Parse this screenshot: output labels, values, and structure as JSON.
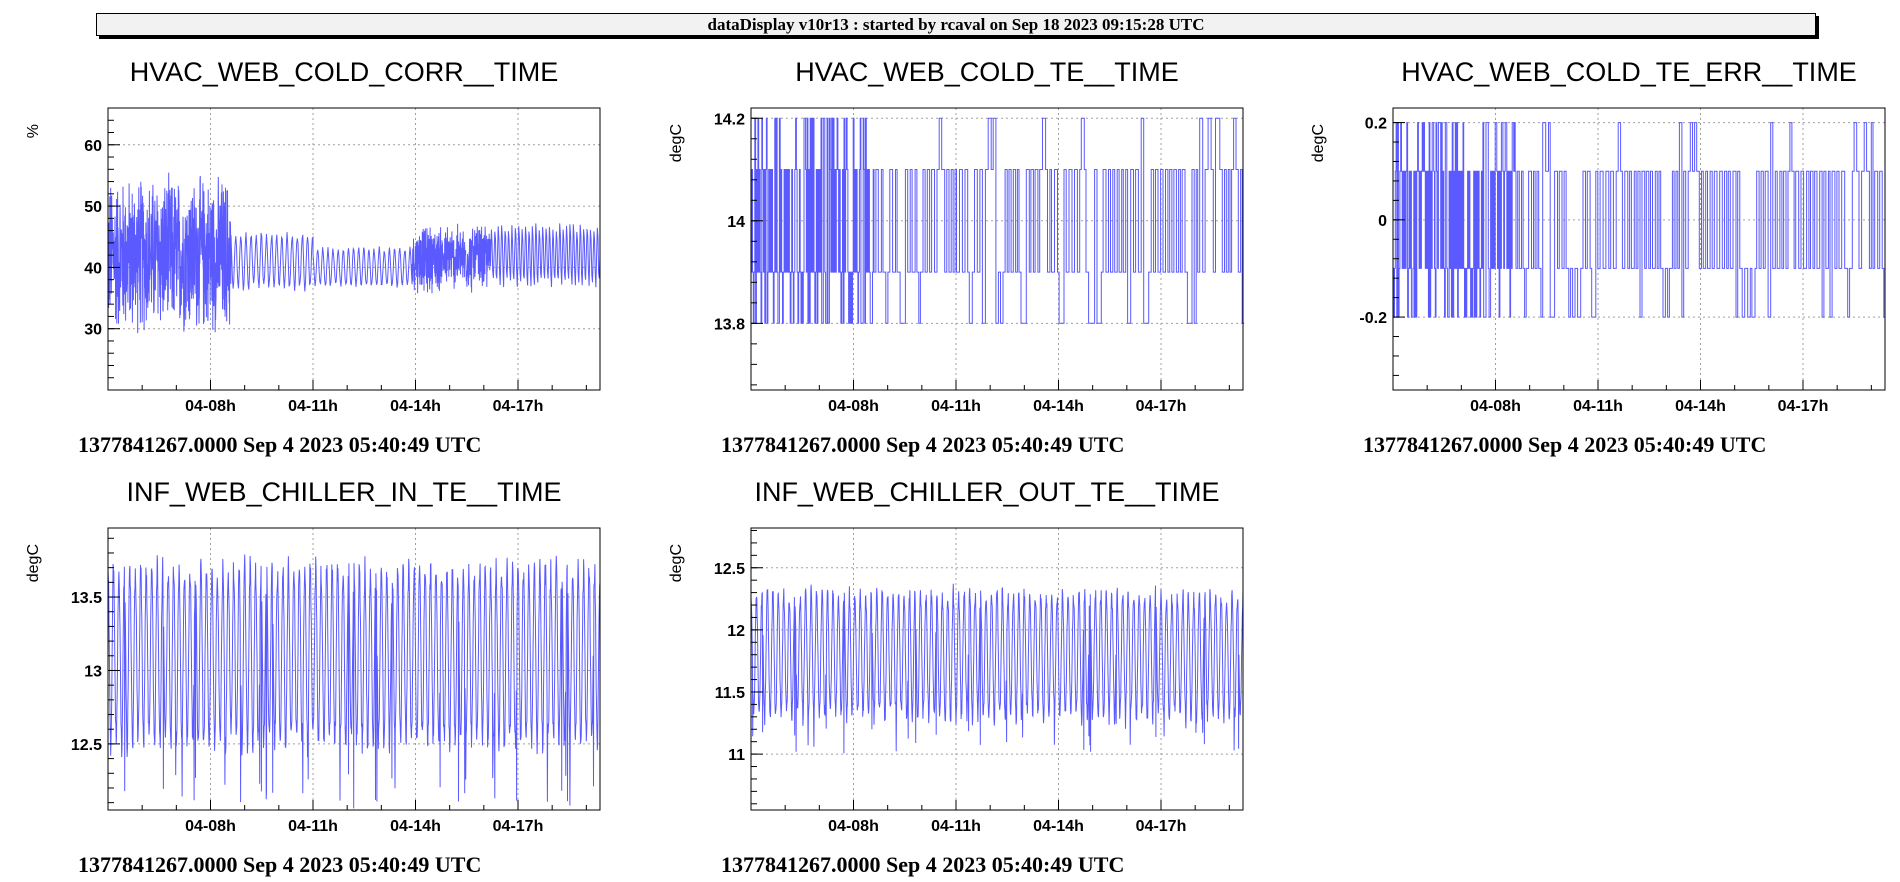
{
  "header": {
    "text": "dataDisplay v10r13 : started by rcaval on Sep 18 2023 09:15:28 UTC"
  },
  "colors": {
    "trace": "#5a5aff",
    "grid": "#a0a0a0",
    "frame": "#000000"
  },
  "chart_data": [
    {
      "type": "line",
      "title": "HVAC_WEB_COLD_CORR__TIME",
      "ylabel": "%",
      "footer": "1377841267.0000 Sep 4 2023 05:40:49 UTC",
      "x_range_h": [
        5.0,
        19.4
      ],
      "x_ticks": [
        {
          "h": 8,
          "label": "04-08h"
        },
        {
          "h": 11,
          "label": "04-11h"
        },
        {
          "h": 14,
          "label": "04-14h"
        },
        {
          "h": 17,
          "label": "04-17h"
        }
      ],
      "ylim": [
        20,
        66
      ],
      "y_ticks": [
        {
          "v": 30,
          "label": "30"
        },
        {
          "v": 40,
          "label": "40"
        },
        {
          "v": 50,
          "label": "50"
        },
        {
          "v": 60,
          "label": "60"
        }
      ],
      "grid": true,
      "series": [
        {
          "segments": [
            {
              "x0": 5.0,
              "x1": 8.6,
              "center": 42,
              "amp": 14,
              "period": 0.02,
              "mode": "noise"
            },
            {
              "x0": 8.6,
              "x1": 11.0,
              "center": 41,
              "amp": 5,
              "period": 0.15,
              "mode": "osc"
            },
            {
              "x0": 11.0,
              "x1": 13.9,
              "center": 40,
              "amp": 3.5,
              "period": 0.15,
              "mode": "osc"
            },
            {
              "x0": 13.9,
              "x1": 16.2,
              "center": 41.5,
              "amp": 6,
              "period": 0.04,
              "mode": "noise"
            },
            {
              "x0": 16.2,
              "x1": 19.4,
              "center": 42,
              "amp": 5.5,
              "period": 0.1,
              "mode": "osc"
            }
          ]
        }
      ]
    },
    {
      "type": "line",
      "title": "HVAC_WEB_COLD_TE__TIME",
      "ylabel": "degC",
      "footer": "1377841267.0000 Sep 4 2023 05:40:49 UTC",
      "x_range_h": [
        5.0,
        19.4
      ],
      "x_ticks": [
        {
          "h": 8,
          "label": "04-08h"
        },
        {
          "h": 11,
          "label": "04-11h"
        },
        {
          "h": 14,
          "label": "04-14h"
        },
        {
          "h": 17,
          "label": "04-17h"
        }
      ],
      "ylim": [
        13.67,
        14.22
      ],
      "y_ticks": [
        {
          "v": 13.8,
          "label": "13.8"
        },
        {
          "v": 14.0,
          "label": "14"
        },
        {
          "v": 14.2,
          "label": "14.2"
        }
      ],
      "grid": true,
      "series": [
        {
          "levels": [
            13.8,
            13.9,
            14.0,
            14.1,
            14.2
          ],
          "base_low": 13.9,
          "base_high": 14.1,
          "dense_until_h": 8.6,
          "period_h": 0.09
        }
      ]
    },
    {
      "type": "line",
      "title": "HVAC_WEB_COLD_TE_ERR__TIME",
      "ylabel": "degC",
      "footer": "1377841267.0000 Sep 4 2023 05:40:49 UTC",
      "x_range_h": [
        5.0,
        19.4
      ],
      "x_ticks": [
        {
          "h": 8,
          "label": "04-08h"
        },
        {
          "h": 11,
          "label": "04-11h"
        },
        {
          "h": 14,
          "label": "04-14h"
        },
        {
          "h": 17,
          "label": "04-17h"
        }
      ],
      "ylim": [
        -0.35,
        0.23
      ],
      "y_ticks": [
        {
          "v": -0.2,
          "label": "-0.2"
        },
        {
          "v": 0,
          "label": "0"
        },
        {
          "v": 0.2,
          "label": "0.2"
        }
      ],
      "grid": true,
      "series": [
        {
          "levels": [
            -0.2,
            -0.1,
            0.0,
            0.1,
            0.2
          ],
          "base_low": -0.1,
          "base_high": 0.1,
          "dense_until_h": 8.6,
          "period_h": 0.09
        }
      ]
    },
    {
      "type": "line",
      "title": "INF_WEB_CHILLER_IN_TE__TIME",
      "ylabel": "degC",
      "footer": "1377841267.0000 Sep 4 2023 05:40:49 UTC",
      "x_range_h": [
        5.0,
        19.4
      ],
      "x_ticks": [
        {
          "h": 8,
          "label": "04-08h"
        },
        {
          "h": 11,
          "label": "04-11h"
        },
        {
          "h": 14,
          "label": "04-14h"
        },
        {
          "h": 17,
          "label": "04-17h"
        }
      ],
      "ylim": [
        12.05,
        13.97
      ],
      "y_ticks": [
        {
          "v": 12.5,
          "label": "12.5"
        },
        {
          "v": 13.0,
          "label": "13"
        },
        {
          "v": 13.5,
          "label": "13.5"
        }
      ],
      "grid": true,
      "series": [
        {
          "low": 12.5,
          "high": 13.7,
          "period_h": 0.16,
          "dip_min": 12.05,
          "peak_max": 13.85
        }
      ]
    },
    {
      "type": "line",
      "title": "INF_WEB_CHILLER_OUT_TE__TIME",
      "ylabel": "degC",
      "footer": "1377841267.0000 Sep 4 2023 05:40:49 UTC",
      "x_range_h": [
        5.0,
        19.4
      ],
      "x_ticks": [
        {
          "h": 8,
          "label": "04-08h"
        },
        {
          "h": 11,
          "label": "04-11h"
        },
        {
          "h": 14,
          "label": "04-14h"
        },
        {
          "h": 17,
          "label": "04-17h"
        }
      ],
      "ylim": [
        10.55,
        12.82
      ],
      "y_ticks": [
        {
          "v": 11.0,
          "label": "11"
        },
        {
          "v": 11.5,
          "label": "11.5"
        },
        {
          "v": 12.0,
          "label": "12"
        },
        {
          "v": 12.5,
          "label": "12.5"
        }
      ],
      "grid": true,
      "series": [
        {
          "low": 11.3,
          "high": 12.3,
          "period_h": 0.16,
          "dip_min": 11.0,
          "peak_max": 12.5
        }
      ]
    }
  ]
}
